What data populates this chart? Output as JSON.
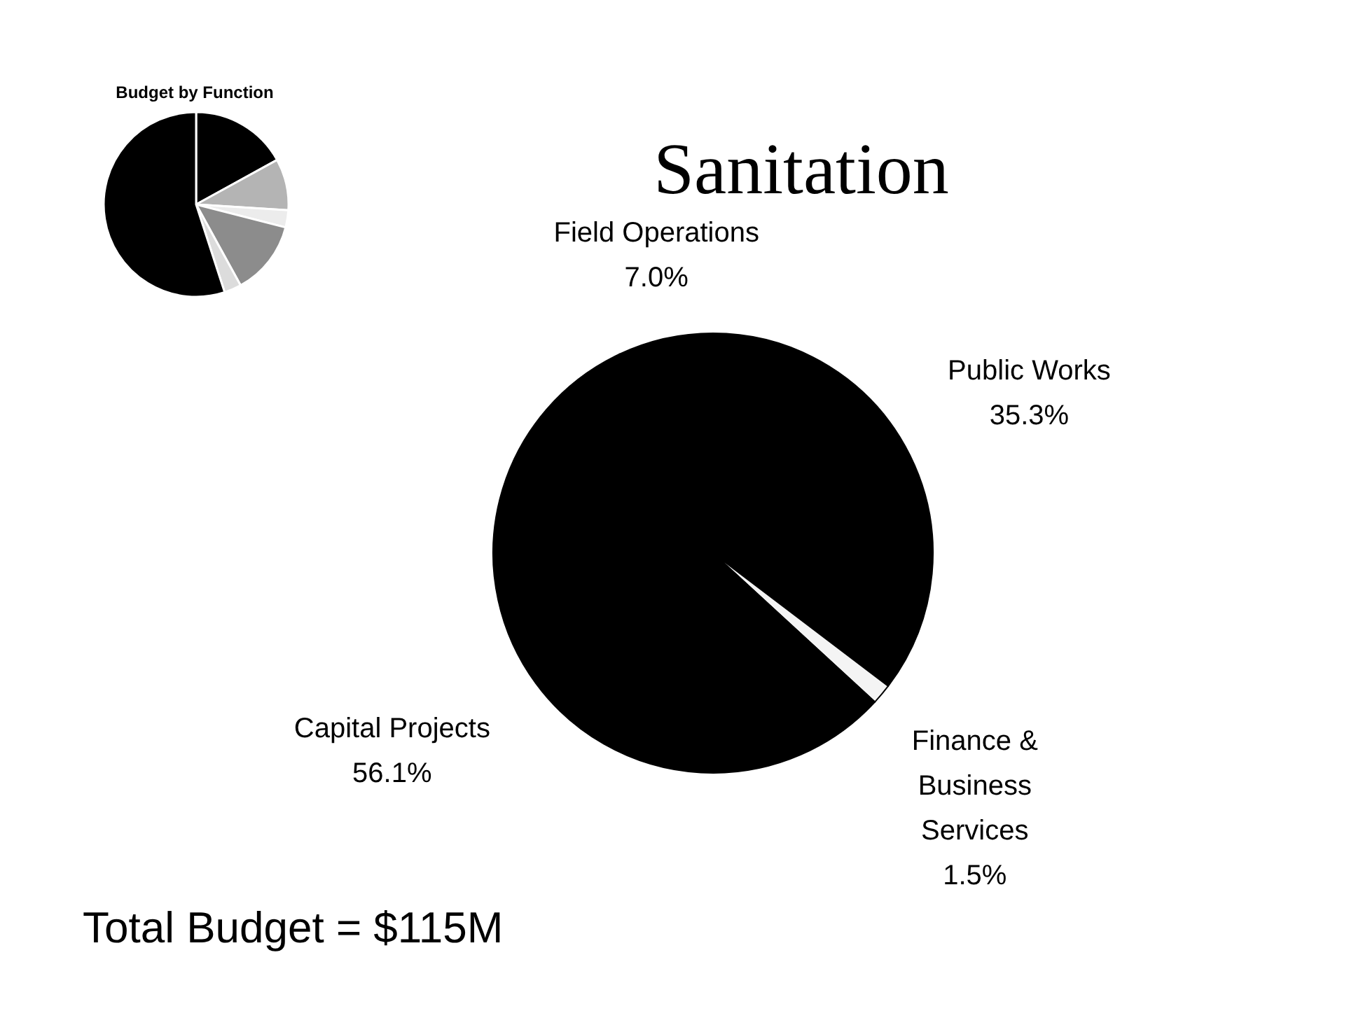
{
  "chart_data": [
    {
      "type": "pie",
      "title": "Budget by Function",
      "categories": [
        null,
        null,
        null,
        null,
        null,
        null
      ],
      "values": [
        17,
        9,
        3,
        13,
        3,
        55
      ],
      "colors": [
        "#000000",
        "#b4b4b4",
        "#ececec",
        "#8c8c8c",
        "#dcdcdc",
        "#000000"
      ]
    },
    {
      "type": "pie",
      "title": "Sanitation",
      "categories": [
        "Public Works",
        "Finance & Business Services",
        "Capital Projects",
        "Field Operations"
      ],
      "values": [
        35.3,
        1.5,
        56.1,
        7.0
      ],
      "colors": [
        "#000000",
        "#f4f4f4",
        "#000000",
        "#000000"
      ],
      "value_labels": [
        "35.3%",
        "1.5%",
        "56.1%",
        "7.0%"
      ],
      "annotations": [
        "Total Budget = $115M"
      ]
    }
  ]
}
